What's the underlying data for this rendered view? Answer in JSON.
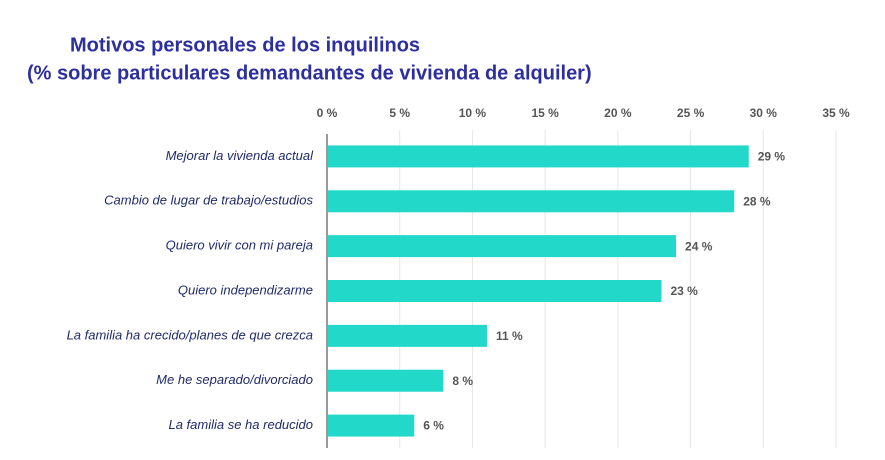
{
  "chart_data": {
    "type": "bar",
    "orientation": "horizontal",
    "title": "Motivos personales de los inquilinos",
    "subtitle": "(% sobre particulares demandantes de vivienda de alquiler)",
    "categories": [
      "Mejorar la vivienda actual",
      "Cambio de lugar de trabajo/estudios",
      "Quiero vivir con mi pareja",
      "Quiero independizarme",
      "La familia ha crecido/planes de que crezca",
      "Me he separado/divorciado",
      "La familia se ha reducido"
    ],
    "values": [
      29,
      28,
      24,
      23,
      11,
      8,
      6
    ],
    "value_labels": [
      "29 %",
      "28 %",
      "24 %",
      "23 %",
      "11 %",
      "8 %",
      "6 %"
    ],
    "color": "#22d8c8",
    "xlim": [
      0,
      35
    ],
    "xticks": [
      {
        "value": 0,
        "label": "0 %"
      },
      {
        "value": 5,
        "label": "5 %"
      },
      {
        "value": 10,
        "label": "10 %"
      },
      {
        "value": 15,
        "label": "15 %"
      },
      {
        "value": 20,
        "label": "20 %"
      },
      {
        "value": 25,
        "label": "25 %"
      },
      {
        "value": 30,
        "label": "30 %"
      },
      {
        "value": 35,
        "label": "35 %"
      }
    ],
    "grid": true
  }
}
